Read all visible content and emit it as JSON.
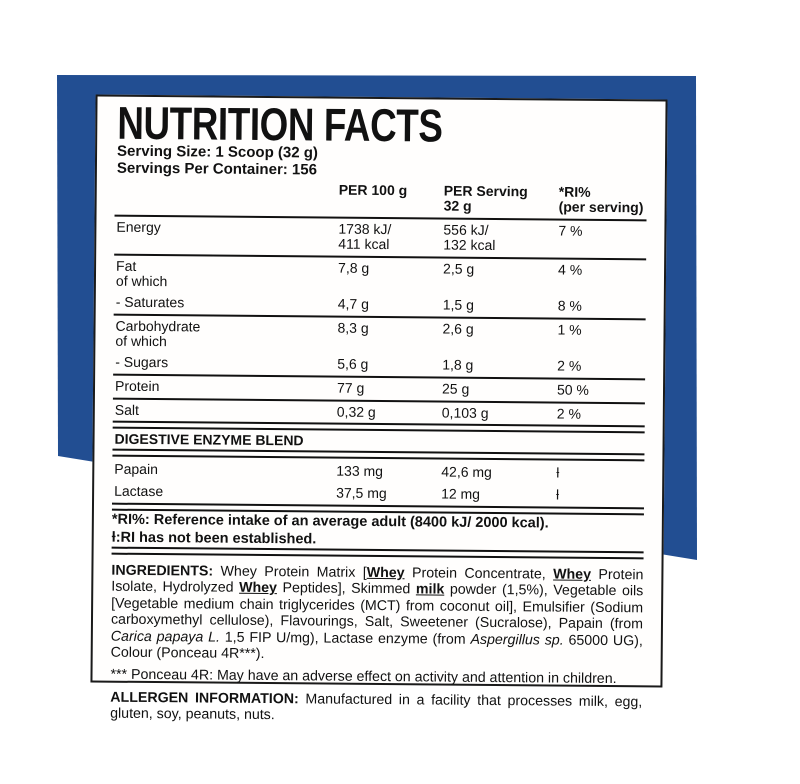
{
  "colors": {
    "background_blue": "#224e92",
    "label_border": "#1a1a1a",
    "text": "#111111"
  },
  "label": {
    "title": "NUTRITION FACTS",
    "serving_size": "Serving Size: 1 Scoop (32 g)",
    "servings_per_container": "Servings Per Container: 156",
    "columns": {
      "per100": "PER 100 g",
      "serving_line1": "PER Serving",
      "serving_line2": "32 g",
      "ri_line1": "*RI%",
      "ri_line2": "(per serving)"
    },
    "rows": [
      {
        "name": "Energy",
        "per100": "1738 kJ/",
        "per100_2": "411 kcal",
        "serving": "556 kJ/",
        "serving_2": "132 kcal",
        "ri": "7 %"
      },
      {
        "name": "Fat",
        "name2": "of which",
        "per100": "7,8 g",
        "serving": "2,5 g",
        "ri": "4 %"
      },
      {
        "name": "- Saturates",
        "per100": "4,7 g",
        "serving": "1,5 g",
        "ri": "8 %"
      },
      {
        "name": "Carbohydrate",
        "name2": "of which",
        "per100": "8,3 g",
        "serving": "2,6 g",
        "ri": "1 %"
      },
      {
        "name": "- Sugars",
        "per100": "5,6 g",
        "serving": "1,8 g",
        "ri": "2 %"
      },
      {
        "name": "Protein",
        "per100": "77 g",
        "serving": "25 g",
        "ri": "50 %"
      },
      {
        "name": "Salt",
        "per100": "0,32 g",
        "serving": "0,103 g",
        "ri": "2 %"
      },
      {
        "name": "Papain",
        "per100": "133 mg",
        "serving": "42,6 mg",
        "ri": "ƚ"
      },
      {
        "name": "Lactase",
        "per100": "37,5 mg",
        "serving": "12 mg",
        "ri": "ƚ"
      }
    ],
    "section_header": "DIGESTIVE ENZYME BLEND",
    "footnote_1": "*RI%: Reference intake of an average adult (8400 kJ/ 2000 kcal).",
    "footnote_2": "ƚ:RI has not been established.",
    "ingredients_segments": [
      {
        "t": "INGREDIENTS: ",
        "f": "b"
      },
      {
        "t": "Whey Protein Matrix ["
      },
      {
        "t": "Whey",
        "f": "bu"
      },
      {
        "t": " Protein Concentrate, "
      },
      {
        "t": "Whey",
        "f": "bu"
      },
      {
        "t": " Protein Isolate, Hydrolyzed "
      },
      {
        "t": "Whey",
        "f": "bu"
      },
      {
        "t": " Peptides], Skimmed "
      },
      {
        "t": "milk",
        "f": "bu"
      },
      {
        "t": " powder (1,5%), Vegetable oils [Vegetable medium chain triglycerides (MCT) from coconut oil], Emulsifier (Sodium carboxymethyl cellulose), Flavourings, Salt, Sweetener (Sucralose), Papain (from "
      },
      {
        "t": "Carica papaya L.",
        "f": "i"
      },
      {
        "t": " 1,5 FIP U/mg), Lactase enzyme (from "
      },
      {
        "t": "Aspergillus sp.",
        "f": "i"
      },
      {
        "t": " 65000 UG), Colour (Ponceau 4R***)."
      }
    ],
    "ponceau_note": "*** Ponceau 4R: May have an adverse effect on activity and attention in children.",
    "allergen_segments": [
      {
        "t": "ALLERGEN INFORMATION: ",
        "f": "b"
      },
      {
        "t": "Manufactured in a facility that processes milk, egg, gluten, soy, peanuts, nuts."
      }
    ]
  }
}
